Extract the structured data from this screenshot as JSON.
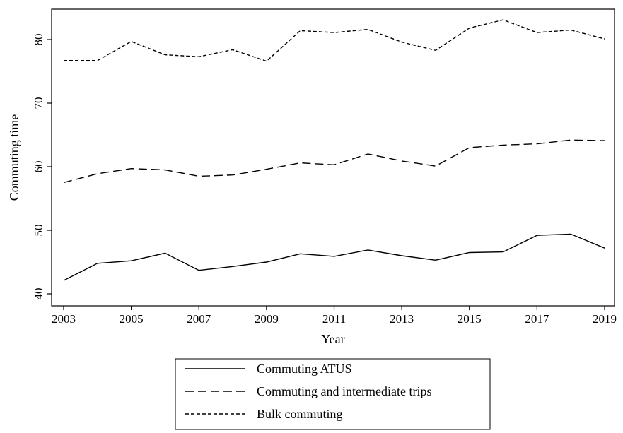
{
  "chart_data": {
    "type": "line",
    "xlabel": "Year",
    "ylabel": "Commuting time",
    "xlim": [
      2003,
      2019
    ],
    "ylim": [
      39,
      85
    ],
    "xticks": [
      2003,
      2005,
      2007,
      2009,
      2011,
      2013,
      2015,
      2017,
      2019
    ],
    "yticks": [
      40,
      50,
      60,
      70,
      80
    ],
    "grid": false,
    "legend_position": "bottom",
    "x": [
      2003,
      2004,
      2005,
      2006,
      2007,
      2008,
      2009,
      2010,
      2011,
      2012,
      2013,
      2014,
      2015,
      2016,
      2017,
      2018,
      2019
    ],
    "series": [
      {
        "name": "Commuting ATUS",
        "style": "solid",
        "values": [
          42.1,
          44.8,
          45.2,
          46.4,
          43.7,
          44.3,
          45.0,
          46.3,
          45.9,
          46.9,
          46.0,
          45.3,
          46.5,
          46.6,
          49.2,
          49.4,
          47.2
        ]
      },
      {
        "name": "Commuting and intermediate trips",
        "style": "dashed",
        "values": [
          57.5,
          58.9,
          59.7,
          59.5,
          58.5,
          58.7,
          59.6,
          60.6,
          60.3,
          62.0,
          60.9,
          60.1,
          63.0,
          63.4,
          63.6,
          64.2,
          64.1
        ]
      },
      {
        "name": "Bulk commuting",
        "style": "dotted",
        "values": [
          76.7,
          76.7,
          79.7,
          77.6,
          77.3,
          78.4,
          76.6,
          81.4,
          81.1,
          81.6,
          79.6,
          78.3,
          81.8,
          83.1,
          81.1,
          81.5,
          80.1
        ]
      }
    ]
  }
}
